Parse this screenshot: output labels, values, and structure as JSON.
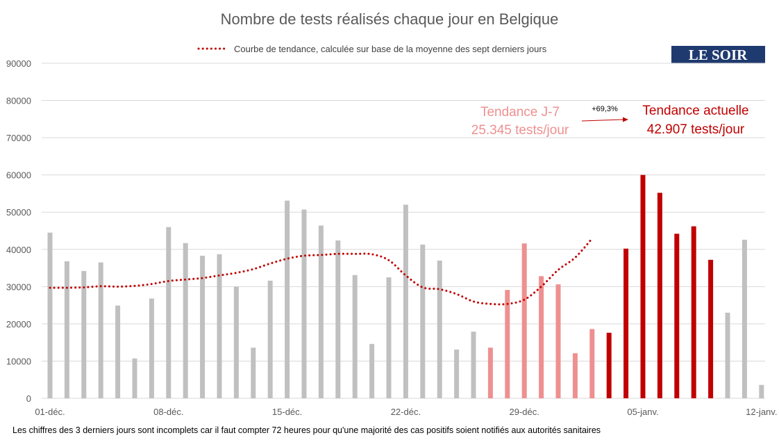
{
  "colors": {
    "normal": "#c0c0c0",
    "previous_week": "#ee9090",
    "current_week": "#c00000",
    "trend": "#c00000",
    "grid": "#d9d9d9",
    "logo_bg": "#1f3a6e"
  },
  "logo": {
    "text": "LE SOIR"
  },
  "footnote": "Les chiffres des 3 derniers jours sont incomplets car il faut compter 72 heures pour qu'une majorité des cas positifs soient notifiés aux autorités sanitaires",
  "annotations": {
    "previous_label": "Tendance J-7",
    "previous_value": "25.345 tests/jour",
    "current_label": "Tendance actuelle",
    "current_value": "42.907 tests/jour",
    "change": "+69,3%"
  },
  "chart_data": {
    "type": "bar",
    "title": "Nombre de tests réalisés chaque jour en Belgique",
    "legend": "Courbe de tendance, calculée sur base de la moyenne des sept derniers jours",
    "ylim": [
      0,
      90000
    ],
    "yticks": [
      0,
      10000,
      20000,
      30000,
      40000,
      50000,
      60000,
      70000,
      80000,
      90000
    ],
    "xtick_labels": [
      {
        "index": 0,
        "label": "01-déc."
      },
      {
        "index": 7,
        "label": "08-déc."
      },
      {
        "index": 14,
        "label": "15-déc."
      },
      {
        "index": 21,
        "label": "22-déc."
      },
      {
        "index": 28,
        "label": "29-déc."
      },
      {
        "index": 35,
        "label": "05-janv."
      },
      {
        "index": 42,
        "label": "12-janv."
      }
    ],
    "days": 43,
    "values": [
      44500,
      36800,
      34200,
      36500,
      24900,
      10700,
      26800,
      46000,
      41700,
      38300,
      38700,
      30000,
      13600,
      31600,
      53100,
      50700,
      46400,
      42400,
      33100,
      14600,
      32500,
      52000,
      41300,
      37000,
      13100,
      17900,
      13600,
      29100,
      41600,
      32800,
      30600,
      12100,
      18600,
      17600,
      40200,
      60000,
      55200,
      44200,
      46200,
      37200,
      23000,
      42600,
      3600
    ],
    "groups": [
      "normal",
      "normal",
      "normal",
      "normal",
      "normal",
      "normal",
      "normal",
      "normal",
      "normal",
      "normal",
      "normal",
      "normal",
      "normal",
      "normal",
      "normal",
      "normal",
      "normal",
      "normal",
      "normal",
      "normal",
      "normal",
      "normal",
      "normal",
      "normal",
      "normal",
      "normal",
      "previous_week",
      "previous_week",
      "previous_week",
      "previous_week",
      "previous_week",
      "previous_week",
      "previous_week",
      "current_week",
      "current_week",
      "current_week",
      "current_week",
      "current_week",
      "current_week",
      "current_week",
      "normal",
      "normal",
      "normal"
    ],
    "trend_series": {
      "name": "Courbe de tendance, calculée sur base de la moyenne des sept derniers jours",
      "values": [
        29700,
        29700,
        29800,
        30100,
        30000,
        30200,
        30700,
        31500,
        31900,
        32300,
        33000,
        33700,
        34700,
        36200,
        37500,
        38300,
        38500,
        38800,
        38800,
        38700,
        37100,
        33000,
        29800,
        29300,
        28000,
        26000,
        25350,
        25350,
        26500,
        30000,
        34500,
        37800,
        42907
      ]
    },
    "trend_start_index": 0
  }
}
